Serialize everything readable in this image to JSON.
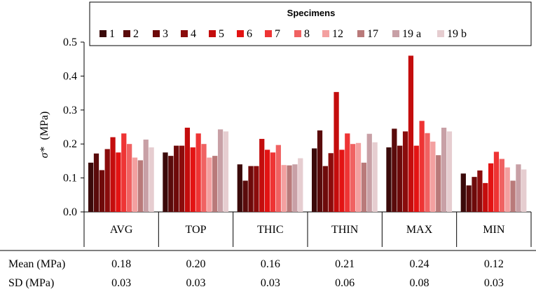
{
  "chart_data": {
    "type": "bar",
    "title": "",
    "xlabel": "",
    "ylabel_symbol": "σ*",
    "ylabel_unit": "(MPa)",
    "ylim": [
      0,
      0.5
    ],
    "yticks": [
      "0.0",
      "0.1",
      "0.2",
      "0.3",
      "0.4",
      "0.5"
    ],
    "ytick_values": [
      0,
      0.1,
      0.2,
      0.3,
      0.4,
      0.5
    ],
    "categories": [
      "AVG",
      "TOP",
      "THIC",
      "THIN",
      "MAX",
      "MIN"
    ],
    "legend_title": "Specimens",
    "series": [
      {
        "name": "1",
        "color": "#3b0a0a",
        "values": [
          0.145,
          0.175,
          0.14,
          0.187,
          0.19,
          0.113
        ]
      },
      {
        "name": "2",
        "color": "#5a0b0b",
        "values": [
          0.172,
          0.165,
          0.092,
          0.24,
          0.245,
          0.078
        ]
      },
      {
        "name": "3",
        "color": "#6e0a0a",
        "values": [
          0.123,
          0.195,
          0.135,
          0.135,
          0.195,
          0.103
        ]
      },
      {
        "name": "4",
        "color": "#8a0c0c",
        "values": [
          0.185,
          0.195,
          0.135,
          0.173,
          0.237,
          0.122
        ]
      },
      {
        "name": "5",
        "color": "#c40d0d",
        "values": [
          0.22,
          0.248,
          0.215,
          0.353,
          0.46,
          0.085
        ]
      },
      {
        "name": "6",
        "color": "#e31313",
        "values": [
          0.175,
          0.19,
          0.183,
          0.183,
          0.195,
          0.143
        ]
      },
      {
        "name": "7",
        "color": "#ee3434",
        "values": [
          0.231,
          0.231,
          0.175,
          0.231,
          0.268,
          0.177
        ]
      },
      {
        "name": "8",
        "color": "#f06262",
        "values": [
          0.2,
          0.2,
          0.197,
          0.2,
          0.232,
          0.156
        ]
      },
      {
        "name": "12",
        "color": "#f3a0a0",
        "values": [
          0.16,
          0.16,
          0.138,
          0.203,
          0.207,
          0.131
        ]
      },
      {
        "name": "17",
        "color": "#b97a7a",
        "values": [
          0.152,
          0.165,
          0.137,
          0.145,
          0.167,
          0.092
        ]
      },
      {
        "name": "19 a",
        "color": "#c8a0a6",
        "values": [
          0.213,
          0.243,
          0.14,
          0.23,
          0.248,
          0.14
        ]
      },
      {
        "name": "19 b",
        "color": "#e6cdd0",
        "values": [
          0.19,
          0.237,
          0.158,
          0.205,
          0.237,
          0.125
        ]
      }
    ],
    "summary_table": {
      "rows": [
        {
          "label": "Mean (MPa)",
          "values": [
            "0.18",
            "0.20",
            "0.16",
            "0.21",
            "0.24",
            "0.12"
          ]
        },
        {
          "label": "SD (MPa)",
          "values": [
            "0.03",
            "0.03",
            "0.03",
            "0.06",
            "0.08",
            "0.03"
          ]
        }
      ]
    }
  }
}
